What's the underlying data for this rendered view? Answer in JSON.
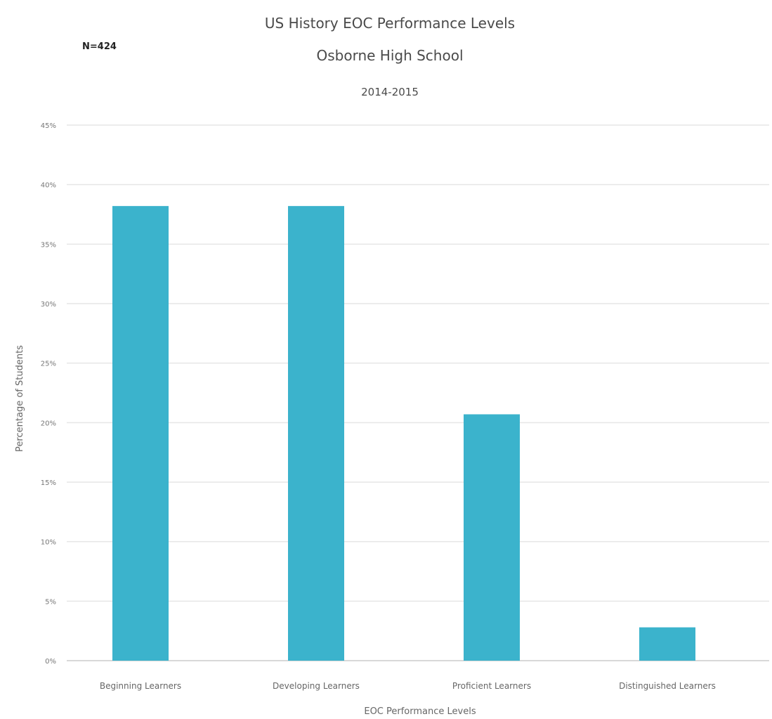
{
  "chart_data": {
    "type": "bar",
    "title": "US History EOC Performance  Levels",
    "subtitle_lines": [
      "Osborne High School",
      "2014-2015"
    ],
    "annotation": "N=424",
    "xlabel": "EOC Performance Levels",
    "ylabel": "Percentage of Students",
    "categories": [
      "Beginning Learners",
      "Developing Learners",
      "Proficient Learners",
      "Distinguished Learners"
    ],
    "values": [
      38.2,
      38.2,
      20.7,
      2.8
    ],
    "ylim": [
      0,
      45
    ],
    "yticks": [
      0,
      5,
      10,
      15,
      20,
      25,
      30,
      35,
      40,
      45
    ],
    "ytick_labels": [
      "0%",
      "5%",
      "10%",
      "15%",
      "20%",
      "25%",
      "30%",
      "35%",
      "40%",
      "45%"
    ],
    "grid": true,
    "legend": "none",
    "bar_color": "#3bb3cc"
  }
}
